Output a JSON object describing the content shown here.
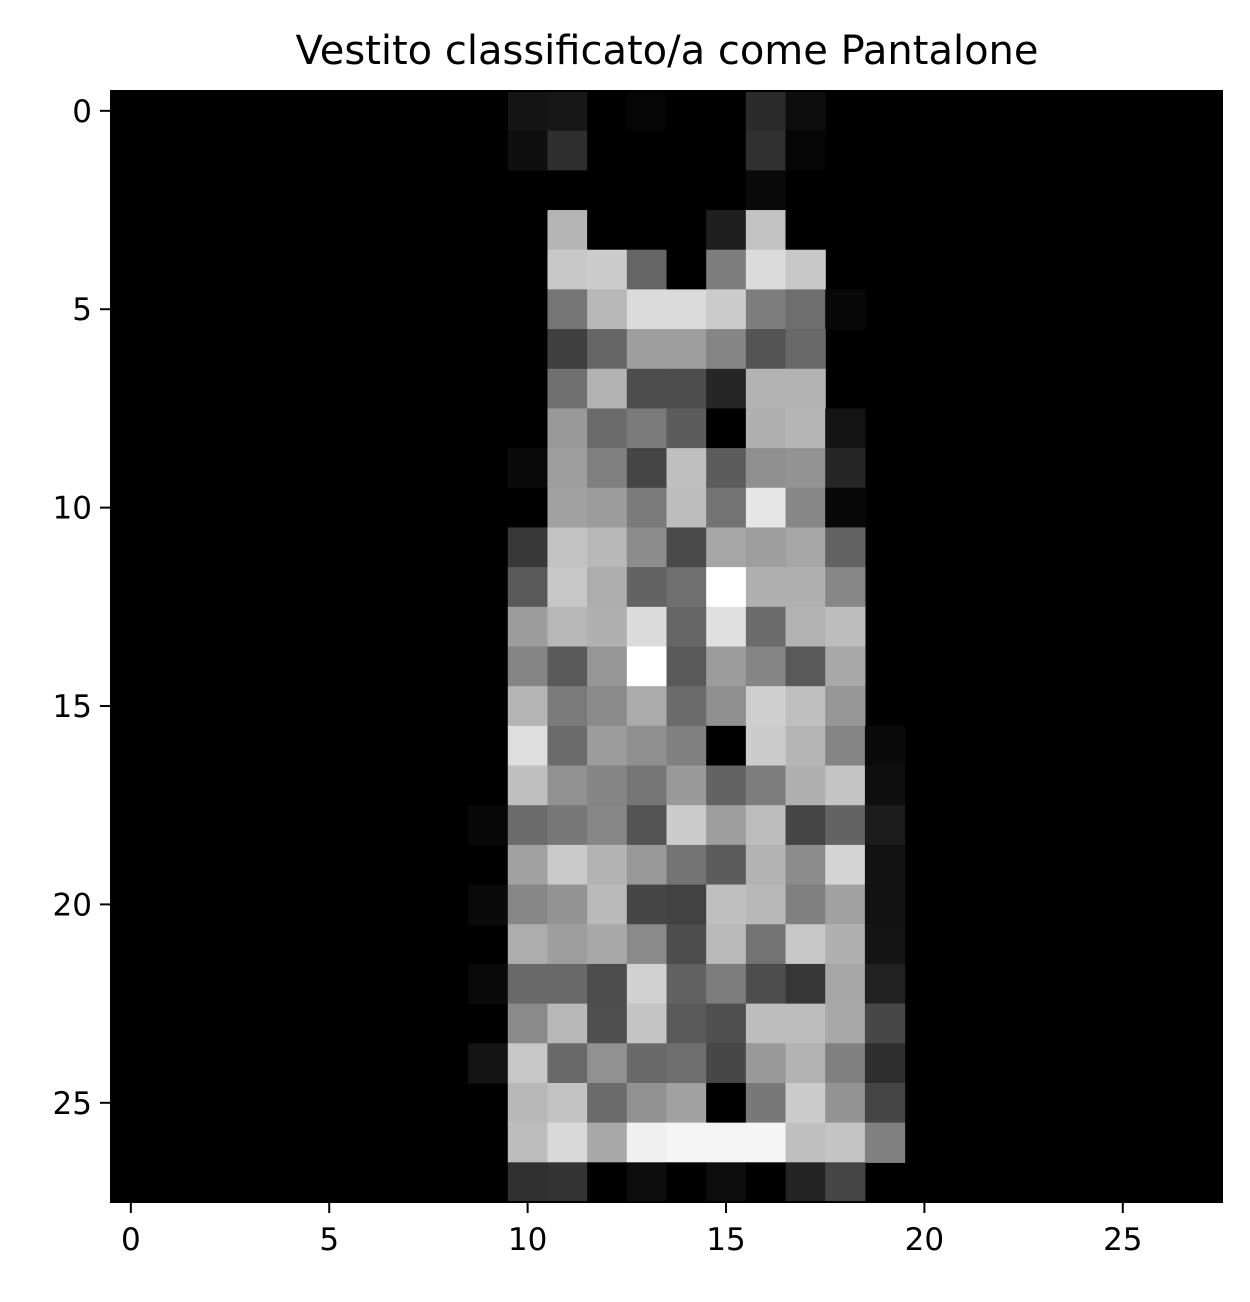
{
  "chart_data": {
    "type": "heatmap",
    "title": "Vestito classificato/a come Pantalone",
    "xlabel": "",
    "ylabel": "",
    "colormap": "gray",
    "rows": 28,
    "cols": 28,
    "xlim": [
      -0.5,
      27.5
    ],
    "ylim": [
      27.5,
      -0.5
    ],
    "xticks": [
      0,
      5,
      10,
      15,
      20,
      25
    ],
    "yticks": [
      0,
      5,
      10,
      15,
      20,
      25
    ],
    "xtick_labels": [
      "0",
      "5",
      "10",
      "15",
      "20",
      "25"
    ],
    "ytick_labels": [
      "0",
      "5",
      "10",
      "15",
      "20",
      "25"
    ],
    "value_range": [
      0,
      1
    ],
    "cells": [
      {
        "row": 0,
        "cols_from": 10,
        "values": [
          0.08,
          0.09,
          0,
          0.02,
          0,
          0,
          0.17,
          0.05
        ]
      },
      {
        "row": 1,
        "cols_from": 10,
        "values": [
          0.06,
          0.18,
          0,
          0,
          0,
          0,
          0.19,
          0.02
        ]
      },
      {
        "row": 2,
        "cols_from": 10,
        "values": [
          0,
          0,
          0,
          0,
          0,
          0,
          0.04,
          0
        ]
      },
      {
        "row": 3,
        "cols_from": 10,
        "values": [
          0,
          0.71,
          0,
          0,
          0,
          0.12,
          0.76,
          0
        ]
      },
      {
        "row": 4,
        "cols_from": 10,
        "values": [
          0,
          0.78,
          0.8,
          0.4,
          0,
          0.49,
          0.86,
          0.78
        ]
      },
      {
        "row": 5,
        "cols_from": 10,
        "values": [
          0,
          0.46,
          0.72,
          0.86,
          0.86,
          0.8,
          0.49,
          0.43,
          0.03
        ]
      },
      {
        "row": 6,
        "cols_from": 10,
        "values": [
          0,
          0.25,
          0.4,
          0.62,
          0.62,
          0.52,
          0.33,
          0.41
        ]
      },
      {
        "row": 7,
        "cols_from": 10,
        "values": [
          0,
          0.44,
          0.7,
          0.3,
          0.3,
          0.15,
          0.7,
          0.7
        ]
      },
      {
        "row": 8,
        "cols_from": 10,
        "values": [
          0,
          0.6,
          0.42,
          0.48,
          0.36,
          0,
          0.69,
          0.71,
          0.08
        ]
      },
      {
        "row": 9,
        "cols_from": 10,
        "values": [
          0.04,
          0.62,
          0.5,
          0.27,
          0.75,
          0.36,
          0.56,
          0.58,
          0.15
        ]
      },
      {
        "row": 10,
        "cols_from": 10,
        "values": [
          0,
          0.63,
          0.61,
          0.48,
          0.74,
          0.45,
          0.9,
          0.53,
          0.03
        ]
      },
      {
        "row": 11,
        "cols_from": 10,
        "values": [
          0.22,
          0.76,
          0.72,
          0.55,
          0.29,
          0.65,
          0.62,
          0.65,
          0.39
        ]
      },
      {
        "row": 12,
        "cols_from": 10,
        "values": [
          0.35,
          0.78,
          0.68,
          0.39,
          0.44,
          1.0,
          0.69,
          0.69,
          0.53
        ]
      },
      {
        "row": 13,
        "cols_from": 10,
        "values": [
          0.61,
          0.72,
          0.69,
          0.86,
          0.4,
          0.88,
          0.42,
          0.7,
          0.74
        ]
      },
      {
        "row": 14,
        "cols_from": 10,
        "values": [
          0.52,
          0.35,
          0.59,
          1.0,
          0.35,
          0.61,
          0.52,
          0.35,
          0.66
        ]
      },
      {
        "row": 15,
        "cols_from": 10,
        "values": [
          0.71,
          0.48,
          0.54,
          0.67,
          0.42,
          0.56,
          0.81,
          0.75,
          0.59
        ]
      },
      {
        "row": 16,
        "cols_from": 10,
        "values": [
          0.87,
          0.42,
          0.61,
          0.56,
          0.5,
          0,
          0.8,
          0.71,
          0.52,
          0.04
        ]
      },
      {
        "row": 17,
        "cols_from": 10,
        "values": [
          0.75,
          0.57,
          0.52,
          0.46,
          0.6,
          0.39,
          0.49,
          0.69,
          0.77,
          0.06
        ]
      },
      {
        "row": 18,
        "cols_from": 9,
        "values": [
          0.03,
          0.42,
          0.47,
          0.53,
          0.33,
          0.8,
          0.62,
          0.74,
          0.27,
          0.39,
          0.11
        ]
      },
      {
        "row": 19,
        "cols_from": 10,
        "values": [
          0.63,
          0.79,
          0.7,
          0.6,
          0.45,
          0.36,
          0.7,
          0.55,
          0.83,
          0.07
        ]
      },
      {
        "row": 20,
        "cols_from": 9,
        "values": [
          0.04,
          0.53,
          0.58,
          0.73,
          0.27,
          0.26,
          0.75,
          0.72,
          0.5,
          0.63,
          0.07
        ]
      },
      {
        "row": 21,
        "cols_from": 10,
        "values": [
          0.68,
          0.62,
          0.66,
          0.54,
          0.3,
          0.73,
          0.45,
          0.78,
          0.69,
          0.08
        ]
      },
      {
        "row": 22,
        "cols_from": 9,
        "values": [
          0.04,
          0.41,
          0.41,
          0.3,
          0.82,
          0.38,
          0.49,
          0.3,
          0.21,
          0.65,
          0.13
        ]
      },
      {
        "row": 23,
        "cols_from": 10,
        "values": [
          0.54,
          0.72,
          0.31,
          0.77,
          0.35,
          0.31,
          0.74,
          0.74,
          0.66,
          0.28
        ]
      },
      {
        "row": 24,
        "cols_from": 9,
        "values": [
          0.08,
          0.78,
          0.41,
          0.57,
          0.41,
          0.43,
          0.28,
          0.6,
          0.7,
          0.5,
          0.18
        ]
      },
      {
        "row": 25,
        "cols_from": 10,
        "values": [
          0.72,
          0.76,
          0.42,
          0.57,
          0.63,
          0,
          0.47,
          0.8,
          0.58,
          0.27
        ]
      },
      {
        "row": 26,
        "cols_from": 10,
        "values": [
          0.74,
          0.85,
          0.66,
          0.94,
          0.96,
          0.96,
          0.96,
          0.75,
          0.77,
          0.5
        ]
      },
      {
        "row": 27,
        "cols_from": 10,
        "values": [
          0.19,
          0.2,
          0,
          0.05,
          0,
          0.05,
          0,
          0.14,
          0.27
        ]
      }
    ]
  }
}
